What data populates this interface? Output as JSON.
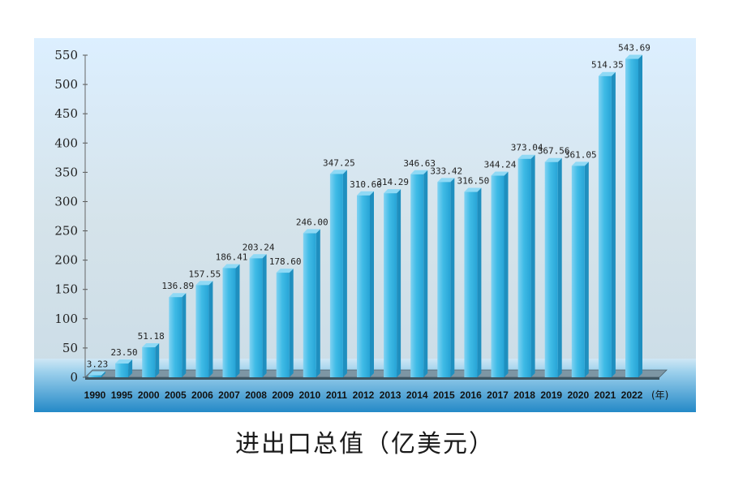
{
  "caption": "进出口总值（亿美元）",
  "colors": {
    "bar_front": "#35b3e0",
    "bar_side": "#1f8fbf",
    "bar_top": "#8fd9f5",
    "panel_bg": "#cfe8f3",
    "band_dark": "#2f93cf"
  },
  "chart_data": {
    "type": "bar",
    "title": "",
    "xlabel": "",
    "ylabel": "",
    "x_unit": "(年)",
    "ylim": [
      0,
      550
    ],
    "yticks": [
      0,
      50,
      100,
      150,
      200,
      250,
      300,
      350,
      400,
      450,
      500,
      550
    ],
    "categories": [
      "1990",
      "1995",
      "2000",
      "2005",
      "2006",
      "2007",
      "2008",
      "2009",
      "2010",
      "2011",
      "2012",
      "2013",
      "2014",
      "2015",
      "2016",
      "2017",
      "2018",
      "2019",
      "2020",
      "2021",
      "2022"
    ],
    "values": [
      3.23,
      23.5,
      51.18,
      136.89,
      157.55,
      186.41,
      203.24,
      178.6,
      246.0,
      347.25,
      310.6,
      314.29,
      346.63,
      333.42,
      316.5,
      344.24,
      373.04,
      367.56,
      361.05,
      514.35,
      543.69
    ],
    "value_labels": [
      "3.23",
      "23.50",
      "51.18",
      "136.89",
      "157.55",
      "186.41",
      "203.24",
      "178.60",
      "246.00",
      "347.25",
      "310.60",
      "314.29",
      "346.63",
      "333.42",
      "316.50",
      "344.24",
      "373.04",
      "367.56",
      "361.05",
      "514.35",
      "543.69"
    ],
    "grid": false,
    "legend": "none"
  }
}
